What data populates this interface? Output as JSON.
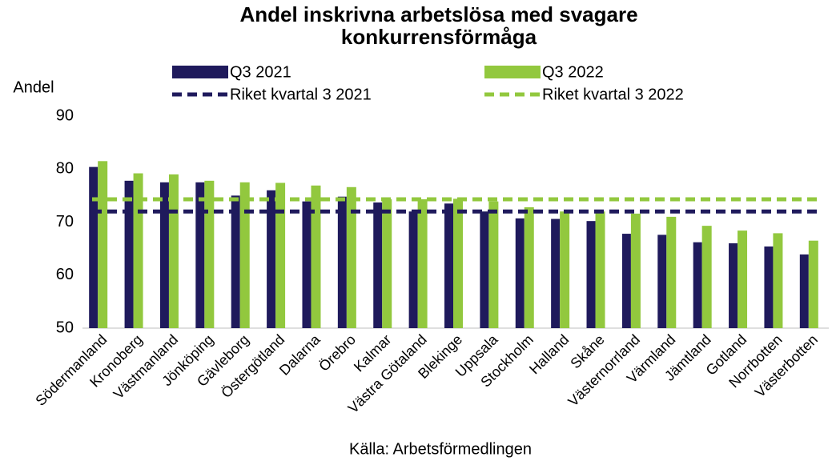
{
  "chart_data": {
    "type": "bar",
    "title": "Andel inskrivna arbetslösa med svagare konkurrensförmåga",
    "y_label": "Andel",
    "source": "Källa: Arbetsförmedlingen",
    "categories": [
      "Södermanland",
      "Kronoberg",
      "Västmanland",
      "Jönköping",
      "Gävleborg",
      "Östergötland",
      "Dalarna",
      "Örebro",
      "Kalmar",
      "Västra Götaland",
      "Blekinge",
      "Uppsala",
      "Stockholm",
      "Halland",
      "Skåne",
      "Västernorrland",
      "Värmland",
      "Jämtland",
      "Gotland",
      "Norrbotten",
      "Västerbotten"
    ],
    "series": [
      {
        "name": "Q3 2021",
        "color": "#1f1a5c",
        "values": [
          80.4,
          77.8,
          77.5,
          77.5,
          75.0,
          76.0,
          73.9,
          74.8,
          73.7,
          72.0,
          73.5,
          72.0,
          70.7,
          70.6,
          70.2,
          67.8,
          67.6,
          66.2,
          66.0,
          65.4,
          63.9
        ]
      },
      {
        "name": "Q3 2022",
        "color": "#92c83e",
        "values": [
          81.5,
          79.2,
          79.0,
          77.8,
          77.5,
          77.4,
          76.9,
          76.6,
          74.3,
          74.3,
          74.4,
          73.9,
          72.8,
          72.0,
          72.0,
          71.6,
          71.0,
          69.3,
          68.4,
          67.9,
          66.5
        ]
      }
    ],
    "reference_lines": [
      {
        "name": "Riket kvartal 3 2021",
        "color": "#1f1a5c",
        "value": 72.0
      },
      {
        "name": "Riket kvartal 3 2022",
        "color": "#92c83e",
        "value": 74.3
      }
    ],
    "ylim": [
      50,
      90
    ],
    "yticks": [
      50,
      60,
      70,
      80,
      90
    ],
    "grid": false
  }
}
